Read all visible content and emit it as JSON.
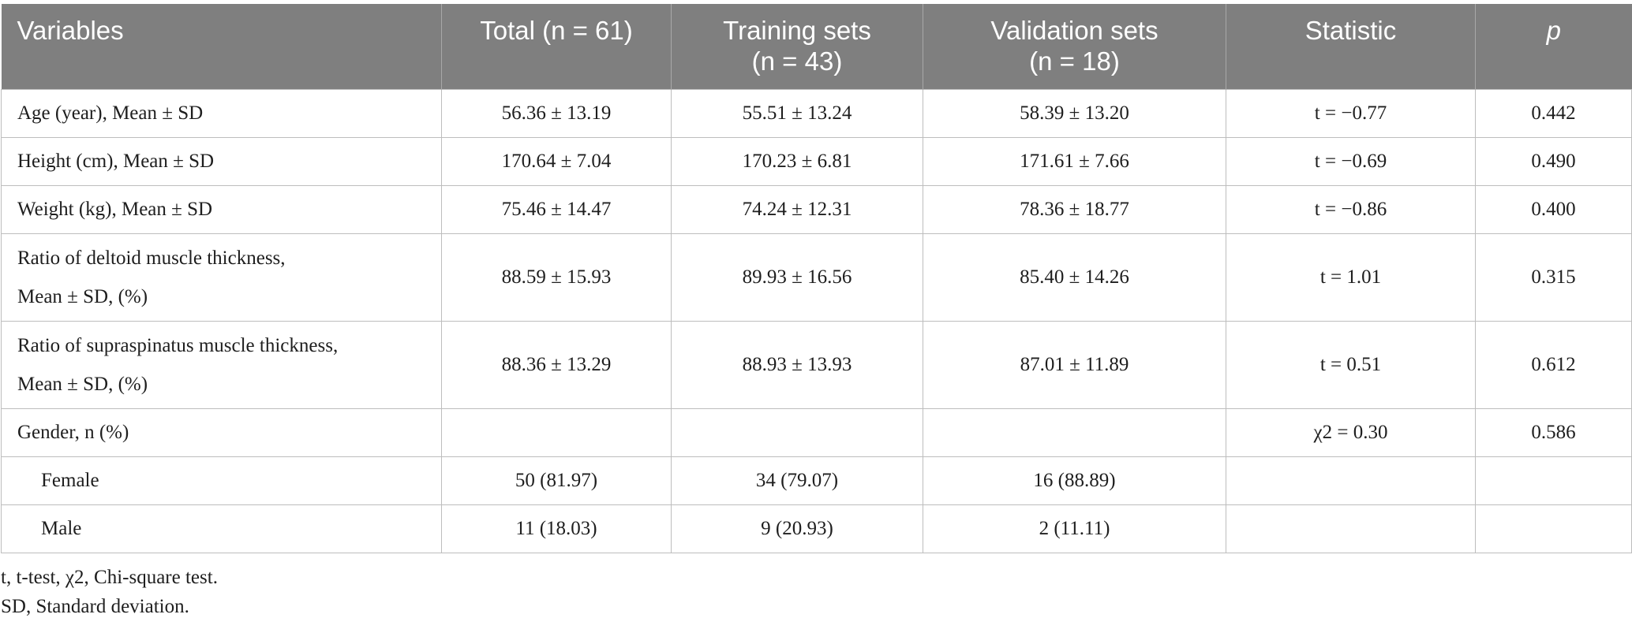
{
  "headers": {
    "variables": "Variables",
    "total": "Total (n = 61)",
    "training_l1": "Training sets",
    "training_l2": "(n = 43)",
    "validation_l1": "Validation sets",
    "validation_l2": "(n = 18)",
    "statistic": "Statistic",
    "p": "p"
  },
  "rows": [
    {
      "label": "Age (year), Mean ± SD",
      "total": "56.36 ± 13.19",
      "training": "55.51 ± 13.24",
      "validation": "58.39 ± 13.20",
      "statistic": "t = −0.77",
      "p": "0.442"
    },
    {
      "label": "Height (cm), Mean ± SD",
      "total": "170.64 ± 7.04",
      "training": "170.23 ± 6.81",
      "validation": "171.61 ± 7.66",
      "statistic": "t = −0.69",
      "p": "0.490"
    },
    {
      "label": "Weight (kg), Mean ± SD",
      "total": "75.46 ± 14.47",
      "training": "74.24 ± 12.31",
      "validation": "78.36 ± 18.77",
      "statistic": "t = −0.86",
      "p": "0.400"
    },
    {
      "label_l1": "Ratio of deltoid muscle thickness,",
      "label_l2": "Mean ± SD, (%)",
      "total": "88.59 ± 15.93",
      "training": "89.93 ± 16.56",
      "validation": "85.40 ± 14.26",
      "statistic": "t = 1.01",
      "p": "0.315"
    },
    {
      "label_l1": "Ratio of supraspinatus muscle thickness,",
      "label_l2": "Mean ± SD, (%)",
      "total": "88.36 ± 13.29",
      "training": "88.93 ± 13.93",
      "validation": "87.01 ± 11.89",
      "statistic": "t = 0.51",
      "p": "0.612"
    },
    {
      "label": "Gender, n (%)",
      "total": "",
      "training": "",
      "validation": "",
      "statistic": "χ2 = 0.30",
      "p": "0.586"
    },
    {
      "label": "Female",
      "total": "50 (81.97)",
      "training": "34 (79.07)",
      "validation": "16 (88.89)",
      "statistic": "",
      "p": ""
    },
    {
      "label": "Male",
      "total": "11 (18.03)",
      "training": "9 (20.93)",
      "validation": "2 (11.11)",
      "statistic": "",
      "p": ""
    }
  ],
  "footnotes": [
    "t, t-test, χ2, Chi-square test.",
    "SD, Standard deviation."
  ]
}
